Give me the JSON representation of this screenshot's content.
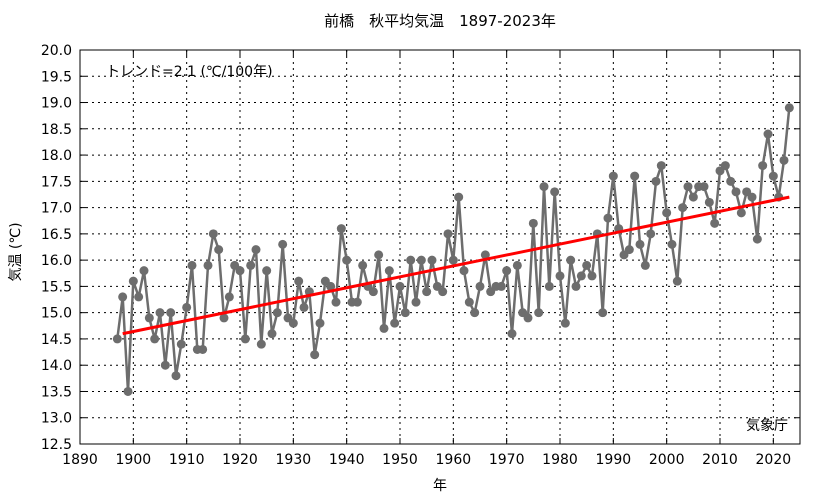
{
  "chart_data": {
    "type": "line",
    "title": "前橋　秋平均気温　1897-2023年",
    "xlabel": "年",
    "ylabel": "気温 (℃)",
    "xlim": [
      1890,
      2025
    ],
    "ylim": [
      12.5,
      20.0
    ],
    "xticks": [
      1890,
      1900,
      1910,
      1920,
      1930,
      1940,
      1950,
      1960,
      1970,
      1980,
      1990,
      2000,
      2010,
      2020
    ],
    "yticks": [
      "12.5",
      "13.0",
      "13.5",
      "14.0",
      "14.5",
      "15.0",
      "15.5",
      "16.0",
      "16.5",
      "17.0",
      "17.5",
      "18.0",
      "18.5",
      "19.0",
      "19.5",
      "20.0"
    ],
    "grid": true,
    "annotation": "トレンド=2.1 (℃/100年)",
    "credit": "気象庁",
    "series_color": "#6d6d6d",
    "trend_color": "#ff0000",
    "x": [
      1897,
      1898,
      1899,
      1900,
      1901,
      1902,
      1903,
      1904,
      1905,
      1906,
      1907,
      1908,
      1909,
      1910,
      1911,
      1912,
      1913,
      1914,
      1915,
      1916,
      1917,
      1918,
      1919,
      1920,
      1921,
      1922,
      1923,
      1924,
      1925,
      1926,
      1927,
      1928,
      1929,
      1930,
      1931,
      1932,
      1933,
      1934,
      1935,
      1936,
      1937,
      1938,
      1939,
      1940,
      1941,
      1942,
      1943,
      1944,
      1945,
      1946,
      1947,
      1948,
      1949,
      1950,
      1951,
      1952,
      1953,
      1954,
      1955,
      1956,
      1957,
      1958,
      1959,
      1960,
      1961,
      1962,
      1963,
      1964,
      1965,
      1966,
      1967,
      1968,
      1969,
      1970,
      1971,
      1972,
      1973,
      1974,
      1975,
      1976,
      1977,
      1978,
      1979,
      1980,
      1981,
      1982,
      1983,
      1984,
      1985,
      1986,
      1987,
      1988,
      1989,
      1990,
      1991,
      1992,
      1993,
      1994,
      1995,
      1996,
      1997,
      1998,
      1999,
      2000,
      2001,
      2002,
      2003,
      2004,
      2005,
      2006,
      2007,
      2008,
      2009,
      2010,
      2011,
      2012,
      2013,
      2014,
      2015,
      2016,
      2017,
      2018,
      2019,
      2020,
      2021,
      2022,
      2023
    ],
    "values": [
      14.5,
      15.3,
      13.5,
      15.6,
      15.3,
      15.8,
      14.9,
      14.5,
      15.0,
      14.0,
      15.0,
      13.8,
      14.4,
      15.1,
      15.9,
      14.3,
      14.3,
      15.9,
      16.5,
      16.2,
      14.9,
      15.3,
      15.9,
      15.8,
      14.5,
      15.9,
      16.2,
      14.4,
      15.8,
      14.6,
      15.0,
      16.3,
      14.9,
      14.8,
      15.6,
      15.1,
      15.4,
      14.2,
      14.8,
      15.6,
      15.5,
      15.2,
      16.6,
      16.0,
      15.2,
      15.2,
      15.9,
      15.5,
      15.4,
      16.1,
      14.7,
      15.8,
      14.8,
      15.5,
      15.0,
      16.0,
      15.2,
      16.0,
      15.4,
      16.0,
      15.5,
      15.4,
      16.5,
      16.0,
      17.2,
      15.8,
      15.2,
      15.0,
      15.5,
      16.1,
      15.4,
      15.5,
      15.5,
      15.8,
      14.6,
      15.9,
      15.0,
      14.9,
      16.7,
      15.0,
      17.4,
      15.5,
      17.3,
      15.7,
      14.8,
      16.0,
      15.5,
      15.7,
      15.9,
      15.7,
      16.5,
      15.0,
      16.8,
      17.6,
      16.6,
      16.1,
      16.2,
      17.6,
      16.3,
      15.9,
      16.5,
      17.5,
      17.8,
      16.9,
      16.3,
      15.6,
      17.0,
      17.4,
      17.2,
      17.4,
      17.4,
      17.1,
      16.7,
      17.7,
      17.8,
      17.5,
      17.3,
      16.9,
      17.3,
      17.2,
      16.4,
      17.8,
      18.4,
      17.6,
      17.2,
      17.9,
      18.9
    ],
    "trend": {
      "start": [
        1898,
        14.6
      ],
      "end": [
        2023,
        17.2
      ]
    }
  }
}
